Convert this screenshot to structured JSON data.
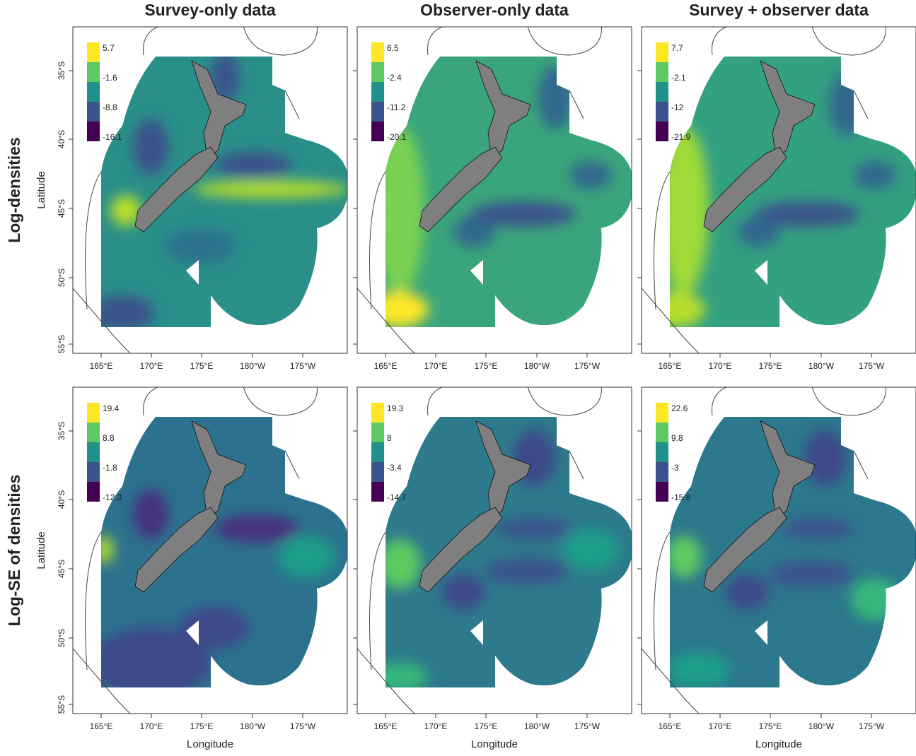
{
  "columns": [
    "Survey-only data",
    "Observer-only data",
    "Survey + observer data"
  ],
  "rows": [
    "Log-densities",
    "Log-SE of densities"
  ],
  "x_label": "Longitude",
  "y_label": "Latitude",
  "x_ticks": [
    "165°E",
    "170°E",
    "175°E",
    "180°W",
    "175°W"
  ],
  "y_ticks": [
    "35°S",
    "40°S",
    "45°S",
    "50°S",
    "55°S"
  ],
  "panels": [
    {
      "legend": [
        5.7,
        -1.6,
        -8.8,
        -16.1
      ]
    },
    {
      "legend": [
        6.5,
        -2.4,
        -11.2,
        -20.1
      ]
    },
    {
      "legend": [
        7.7,
        -2.1,
        -12,
        -21.9
      ]
    },
    {
      "legend": [
        19.4,
        8.8,
        -1.8,
        -12.3
      ]
    },
    {
      "legend": [
        19.3,
        8,
        -3.4,
        -14.7
      ]
    },
    {
      "legend": [
        22.6,
        9.8,
        -3,
        -15.8
      ]
    }
  ]
}
